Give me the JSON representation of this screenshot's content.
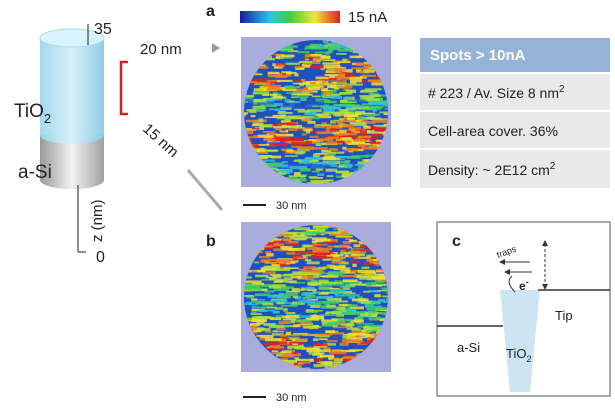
{
  "panel_a": {
    "label": "a",
    "colorbar_label": "15 nA",
    "scale_bar": "30 nm"
  },
  "panel_b": {
    "label": "b",
    "scale_bar": "30 nm"
  },
  "panel_c": {
    "label": "c",
    "traps": "traps",
    "electron": "e",
    "electron_sup": "-",
    "tip": "Tip",
    "a_si": "a-Si",
    "tio2": "TiO",
    "tio2_sub": "2"
  },
  "device": {
    "top": "35",
    "bottom": "0",
    "axis": "z (nm)",
    "tio2": "TiO",
    "tio2_sub": "2",
    "a_si": "a-Si",
    "depth_20": "20 nm",
    "depth_15": "15 nm"
  },
  "table": {
    "header": "Spots > 10nA",
    "rows": [
      [
        "# 223 / Av. Size 8 nm",
        "2"
      ],
      [
        "Cell-area cover. 36%"
      ],
      [
        "Density: ~ 2E12 cm",
        "2"
      ]
    ]
  }
}
